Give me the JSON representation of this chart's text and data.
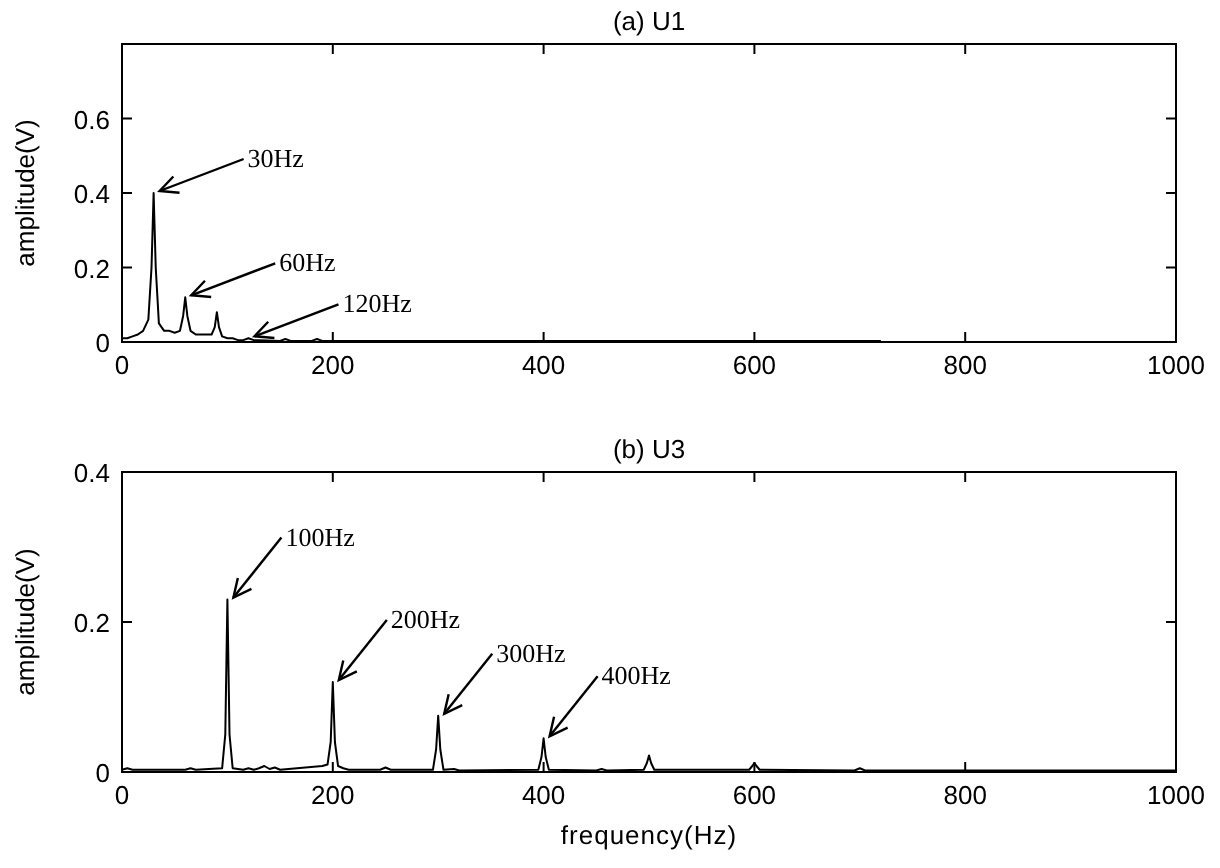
{
  "chart_data": [
    {
      "type": "line",
      "title": "(a) U1",
      "ylabel": "amplitude(V)",
      "xlim": [
        0,
        1000
      ],
      "ylim": [
        0,
        0.8
      ],
      "xticks": [
        0,
        200,
        400,
        600,
        800,
        1000
      ],
      "yticks": [
        0,
        0.2,
        0.4,
        0.6
      ],
      "marker": "none",
      "line_style": "solid",
      "series": [
        {
          "color": "#000000",
          "x": [
            0,
            5,
            10,
            15,
            20,
            25,
            28,
            30,
            32,
            35,
            40,
            45,
            50,
            55,
            58,
            60,
            62,
            65,
            70,
            75,
            80,
            85,
            88,
            90,
            92,
            95,
            100,
            105,
            110,
            115,
            120,
            125,
            130,
            150,
            155,
            160,
            180,
            185,
            190,
            200,
            300,
            400,
            500,
            600,
            720
          ],
          "values": [
            0.01,
            0.01,
            0.015,
            0.02,
            0.03,
            0.06,
            0.2,
            0.4,
            0.2,
            0.05,
            0.03,
            0.03,
            0.025,
            0.03,
            0.07,
            0.12,
            0.07,
            0.03,
            0.02,
            0.02,
            0.02,
            0.02,
            0.04,
            0.08,
            0.04,
            0.015,
            0.01,
            0.01,
            0.005,
            0.005,
            0.01,
            0.005,
            0.005,
            0.003,
            0.008,
            0.003,
            0.003,
            0.008,
            0.003,
            0.003,
            0.003,
            0.003,
            0.003,
            0.003,
            0.003
          ]
        }
      ],
      "annotations": [
        {
          "text": "30Hz",
          "x": 30,
          "y": 0.4
        },
        {
          "text": "60Hz",
          "x": 60,
          "y": 0.12
        },
        {
          "text": "120Hz",
          "x": 120,
          "y": 0.01
        }
      ]
    },
    {
      "type": "line",
      "title": "(b) U3",
      "xlabel": "frequency(Hz)",
      "ylabel": "amplitude(V)",
      "xlim": [
        0,
        1000
      ],
      "ylim": [
        0,
        0.4
      ],
      "xticks": [
        0,
        200,
        400,
        600,
        800,
        1000
      ],
      "yticks": [
        0,
        0.2,
        0.4
      ],
      "marker": "none",
      "line_style": "solid",
      "series": [
        {
          "color": "#000000",
          "x": [
            0,
            5,
            10,
            60,
            65,
            70,
            95,
            98,
            100,
            102,
            105,
            115,
            120,
            125,
            130,
            135,
            140,
            145,
            150,
            190,
            195,
            198,
            200,
            202,
            205,
            210,
            215,
            245,
            250,
            255,
            295,
            298,
            300,
            302,
            305,
            315,
            320,
            395,
            398,
            400,
            402,
            405,
            450,
            455,
            460,
            495,
            498,
            500,
            502,
            505,
            595,
            598,
            600,
            602,
            605,
            695,
            700,
            705,
            1000
          ],
          "values": [
            0.003,
            0.005,
            0.003,
            0.003,
            0.005,
            0.003,
            0.005,
            0.05,
            0.23,
            0.05,
            0.005,
            0.003,
            0.005,
            0.003,
            0.005,
            0.008,
            0.004,
            0.006,
            0.003,
            0.008,
            0.01,
            0.04,
            0.12,
            0.04,
            0.008,
            0.005,
            0.003,
            0.003,
            0.006,
            0.003,
            0.003,
            0.03,
            0.075,
            0.03,
            0.003,
            0.004,
            0.002,
            0.003,
            0.02,
            0.045,
            0.02,
            0.003,
            0.002,
            0.004,
            0.002,
            0.003,
            0.012,
            0.022,
            0.012,
            0.003,
            0.003,
            0.008,
            0.012,
            0.008,
            0.003,
            0.002,
            0.005,
            0.002,
            0.002
          ]
        }
      ],
      "annotations": [
        {
          "text": "100Hz",
          "x": 100,
          "y": 0.23
        },
        {
          "text": "200Hz",
          "x": 200,
          "y": 0.12
        },
        {
          "text": "300Hz",
          "x": 300,
          "y": 0.075
        },
        {
          "text": "400Hz",
          "x": 400,
          "y": 0.045
        }
      ]
    }
  ]
}
